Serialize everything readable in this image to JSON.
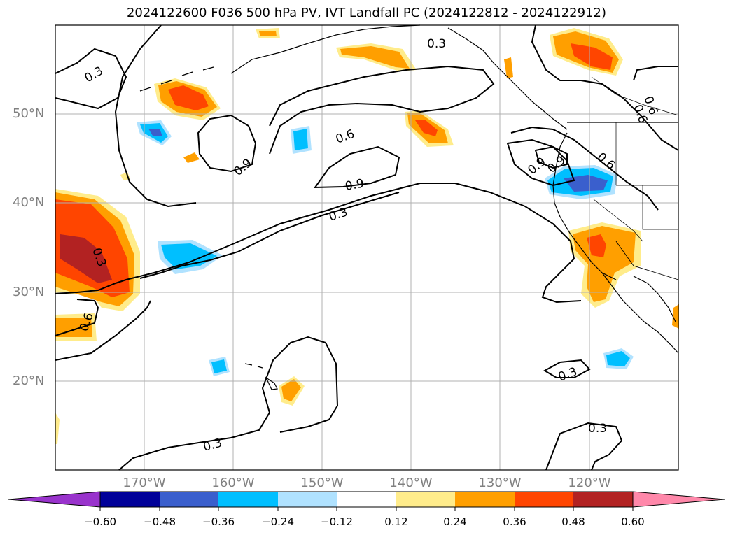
{
  "title": "2024122600 F036 500 hPa PV, IVT Landfall PC (2024122812 - 2024122912)",
  "lat_labels": [
    "50°N",
    "40°N",
    "30°N",
    "20°N"
  ],
  "lon_labels": [
    "170°W",
    "160°W",
    "150°W",
    "140°W",
    "130°W",
    "120°W"
  ],
  "contour_labels": [
    "0.3",
    "0.3",
    "0.6",
    "0.9",
    "0.9",
    "0.6",
    "0.9",
    "0.3",
    "0.3",
    "0.6",
    "0.6",
    "0.9",
    "0.6",
    "0.3",
    "0.3",
    "0.3"
  ],
  "colorbar": {
    "ticks": [
      "−0.60",
      "−0.48",
      "−0.36",
      "−0.24",
      "−0.12",
      "0.12",
      "0.24",
      "0.36",
      "0.48",
      "0.60"
    ],
    "colors": [
      "#9933cc",
      "#000099",
      "#3a5fcd",
      "#00bfff",
      "#b0e2ff",
      "#ffffff",
      "#ffec8b",
      "#ff9f00",
      "#ff4500",
      "#b22222",
      "#ff88aa"
    ]
  },
  "colors": {
    "contour": "#000000",
    "grid": "#b0b0b0",
    "coast": "#000000"
  }
}
